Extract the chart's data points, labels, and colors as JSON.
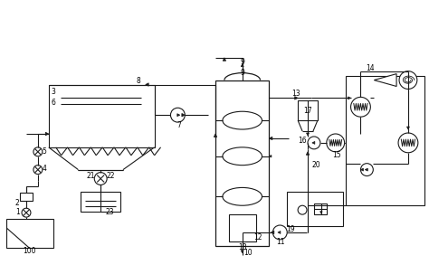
{
  "bg_color": "#ffffff",
  "line_color": "#1a1a1a",
  "line_width": 0.8,
  "fig_width": 4.74,
  "fig_height": 2.93,
  "dpi": 100
}
